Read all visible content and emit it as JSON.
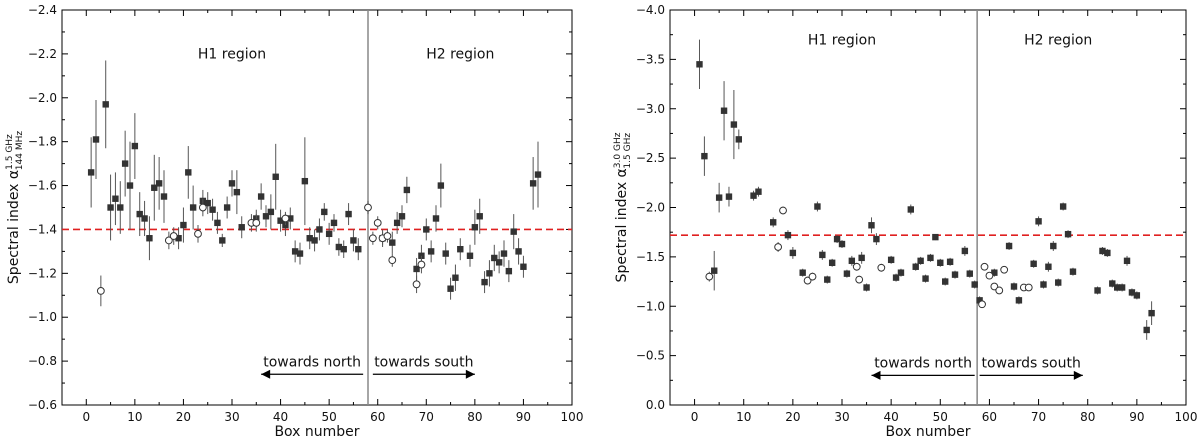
{
  "chart_data": [
    {
      "type": "scatter",
      "xlabel": "Box number",
      "ylabel_main": "Spectral index α",
      "ylabel_sup": "1.5 GHz",
      "ylabel_sub": "144 MHz",
      "xlim": [
        -5,
        100
      ],
      "ylim": [
        -0.6,
        -2.4
      ],
      "xticks": [
        0,
        10,
        20,
        30,
        40,
        50,
        60,
        70,
        80,
        90,
        100
      ],
      "yticks": [
        -0.6,
        -0.8,
        -1.0,
        -1.2,
        -1.4,
        -1.6,
        -1.8,
        -2.0,
        -2.2,
        -2.4
      ],
      "ytick_labels": [
        "−0.6",
        "−0.8",
        "−1.0",
        "−1.2",
        "−1.4",
        "−1.6",
        "−1.8",
        "−2.0",
        "−2.2",
        "−2.4"
      ],
      "reference_line": -1.4,
      "divider_x": 58,
      "region_labels": [
        {
          "text": "H1 region",
          "x": 30,
          "y": -2.18
        },
        {
          "text": "H2 region",
          "x": 77,
          "y": -2.18
        }
      ],
      "arrows": [
        {
          "text": "towards north",
          "x_from": 57,
          "x_to": 36,
          "y": -0.74
        },
        {
          "text": "towards south",
          "x_from": 59,
          "x_to": 80,
          "y": -0.74
        }
      ],
      "series": [
        {
          "name": "filled",
          "points": [
            [
              1,
              -1.66,
              0.16
            ],
            [
              2,
              -1.81,
              0.18
            ],
            [
              4,
              -1.97,
              0.2
            ],
            [
              5,
              -1.5,
              0.15
            ],
            [
              6,
              -1.54,
              0.12
            ],
            [
              7,
              -1.5,
              0.12
            ],
            [
              8,
              -1.7,
              0.15
            ],
            [
              9,
              -1.6,
              0.2
            ],
            [
              10,
              -1.78,
              0.15
            ],
            [
              11,
              -1.47,
              0.1
            ],
            [
              12,
              -1.45,
              0.08
            ],
            [
              13,
              -1.36,
              0.1
            ],
            [
              14,
              -1.59,
              0.15
            ],
            [
              15,
              -1.61,
              0.12
            ],
            [
              16,
              -1.55,
              0.12
            ],
            [
              19,
              -1.36,
              0.05
            ],
            [
              20,
              -1.42,
              0.08
            ],
            [
              21,
              -1.66,
              0.12
            ],
            [
              22,
              -1.5,
              0.1
            ],
            [
              24,
              -1.53,
              0.05
            ],
            [
              25,
              -1.52,
              0.05
            ],
            [
              26,
              -1.49,
              0.05
            ],
            [
              27,
              -1.43,
              0.05
            ],
            [
              28,
              -1.35,
              0.03
            ],
            [
              29,
              -1.5,
              0.05
            ],
            [
              30,
              -1.61,
              0.06
            ],
            [
              31,
              -1.57,
              0.1
            ],
            [
              32,
              -1.41,
              0.05
            ],
            [
              35,
              -1.45,
              0.04
            ],
            [
              36,
              -1.55,
              0.06
            ],
            [
              37,
              -1.46,
              0.05
            ],
            [
              38,
              -1.48,
              0.08
            ],
            [
              39,
              -1.64,
              0.15
            ],
            [
              40,
              -1.44,
              0.05
            ],
            [
              41,
              -1.42,
              0.05
            ],
            [
              42,
              -1.45,
              0.05
            ],
            [
              43,
              -1.3,
              0.05
            ],
            [
              44,
              -1.29,
              0.05
            ],
            [
              45,
              -1.62,
              0.2
            ],
            [
              46,
              -1.36,
              0.05
            ],
            [
              47,
              -1.35,
              0.05
            ],
            [
              48,
              -1.4,
              0.05
            ],
            [
              49,
              -1.48,
              0.04
            ],
            [
              50,
              -1.38,
              0.05
            ],
            [
              51,
              -1.43,
              0.04
            ],
            [
              52,
              -1.32,
              0.04
            ],
            [
              53,
              -1.31,
              0.04
            ],
            [
              54,
              -1.47,
              0.05
            ],
            [
              55,
              -1.35,
              0.05
            ],
            [
              56,
              -1.31,
              0.05
            ],
            [
              61,
              -1.36,
              0.04
            ],
            [
              63,
              -1.34,
              0.05
            ],
            [
              64,
              -1.43,
              0.05
            ],
            [
              65,
              -1.46,
              0.05
            ],
            [
              66,
              -1.58,
              0.06
            ],
            [
              68,
              -1.22,
              0.05
            ],
            [
              69,
              -1.28,
              0.05
            ],
            [
              70,
              -1.4,
              0.05
            ],
            [
              71,
              -1.3,
              0.05
            ],
            [
              72,
              -1.45,
              0.06
            ],
            [
              73,
              -1.6,
              0.1
            ],
            [
              74,
              -1.29,
              0.05
            ],
            [
              75,
              -1.13,
              0.05
            ],
            [
              76,
              -1.18,
              0.06
            ],
            [
              77,
              -1.31,
              0.05
            ],
            [
              79,
              -1.28,
              0.05
            ],
            [
              80,
              -1.41,
              0.08
            ],
            [
              81,
              -1.46,
              0.08
            ],
            [
              82,
              -1.16,
              0.05
            ],
            [
              83,
              -1.2,
              0.06
            ],
            [
              84,
              -1.27,
              0.06
            ],
            [
              85,
              -1.25,
              0.05
            ],
            [
              86,
              -1.29,
              0.06
            ],
            [
              87,
              -1.21,
              0.05
            ],
            [
              88,
              -1.39,
              0.08
            ],
            [
              89,
              -1.3,
              0.06
            ],
            [
              90,
              -1.23,
              0.05
            ],
            [
              92,
              -1.61,
              0.12
            ],
            [
              93,
              -1.65,
              0.15
            ]
          ]
        },
        {
          "name": "open",
          "points": [
            [
              3,
              -1.12,
              0.07
            ],
            [
              17,
              -1.35,
              0.04
            ],
            [
              18,
              -1.37,
              0.04
            ],
            [
              23,
              -1.38,
              0.04
            ],
            [
              24,
              -1.5,
              0.04
            ],
            [
              34,
              -1.43,
              0.04
            ],
            [
              35,
              -1.43,
              0.04
            ],
            [
              41,
              -1.45,
              0.03
            ],
            [
              58,
              -1.5,
              0.03
            ],
            [
              59,
              -1.36,
              0.03
            ],
            [
              60,
              -1.43,
              0.03
            ],
            [
              61,
              -1.36,
              0.03
            ],
            [
              62,
              -1.37,
              0.03
            ],
            [
              63,
              -1.26,
              0.03
            ],
            [
              68,
              -1.15,
              0.04
            ],
            [
              69,
              -1.24,
              0.04
            ]
          ]
        }
      ]
    },
    {
      "type": "scatter",
      "xlabel": "Box number",
      "ylabel_main": "Spectral index α",
      "ylabel_sup": "3.0 GHz",
      "ylabel_sub": "1.5 GHz",
      "xlim": [
        -5,
        100
      ],
      "ylim": [
        0.0,
        -4.0
      ],
      "xticks": [
        0,
        10,
        20,
        30,
        40,
        50,
        60,
        70,
        80,
        90,
        100
      ],
      "yticks": [
        0.0,
        -0.5,
        -1.0,
        -1.5,
        -2.0,
        -2.5,
        -3.0,
        -3.5,
        -4.0
      ],
      "ytick_labels": [
        "0.0",
        "−0.5",
        "−1.0",
        "−1.5",
        "−2.0",
        "−2.5",
        "−3.0",
        "−3.5",
        "−4.0"
      ],
      "reference_line": -1.72,
      "divider_x": 57.5,
      "region_labels": [
        {
          "text": "H1 region",
          "x": 30,
          "y": -3.65
        },
        {
          "text": "H2 region",
          "x": 74,
          "y": -3.65
        }
      ],
      "arrows": [
        {
          "text": "towards north",
          "x_from": 57,
          "x_to": 36,
          "y": -0.3
        },
        {
          "text": "towards south",
          "x_from": 58,
          "x_to": 79,
          "y": -0.3
        }
      ],
      "series": [
        {
          "name": "filled",
          "points": [
            [
              1,
              -3.45,
              0.25
            ],
            [
              2,
              -2.52,
              0.2
            ],
            [
              4,
              -1.36,
              0.2
            ],
            [
              5,
              -2.1,
              0.15
            ],
            [
              6,
              -2.98,
              0.3
            ],
            [
              7,
              -2.11,
              0.1
            ],
            [
              8,
              -2.84,
              0.35
            ],
            [
              9,
              -2.69,
              0.1
            ],
            [
              12,
              -2.12,
              0.05
            ],
            [
              13,
              -2.16,
              0.05
            ],
            [
              16,
              -1.85,
              0.05
            ],
            [
              19,
              -1.72,
              0.05
            ],
            [
              20,
              -1.54,
              0.06
            ],
            [
              22,
              -1.34,
              0.04
            ],
            [
              25,
              -2.01,
              0.05
            ],
            [
              26,
              -1.52,
              0.05
            ],
            [
              27,
              -1.27,
              0.04
            ],
            [
              28,
              -1.44,
              0.04
            ],
            [
              29,
              -1.68,
              0.04
            ],
            [
              30,
              -1.63,
              0.04
            ],
            [
              31,
              -1.33,
              0.04
            ],
            [
              32,
              -1.46,
              0.05
            ],
            [
              34,
              -1.49,
              0.06
            ],
            [
              35,
              -1.19,
              0.04
            ],
            [
              36,
              -1.82,
              0.08
            ],
            [
              37,
              -1.68,
              0.06
            ],
            [
              40,
              -1.47,
              0.04
            ],
            [
              41,
              -1.29,
              0.04
            ],
            [
              42,
              -1.34,
              0.04
            ],
            [
              44,
              -1.98,
              0.05
            ],
            [
              45,
              -1.4,
              0.04
            ],
            [
              46,
              -1.46,
              0.04
            ],
            [
              47,
              -1.28,
              0.04
            ],
            [
              48,
              -1.49,
              0.04
            ],
            [
              49,
              -1.7,
              0.03
            ],
            [
              50,
              -1.44,
              0.04
            ],
            [
              51,
              -1.25,
              0.04
            ],
            [
              52,
              -1.45,
              0.04
            ],
            [
              53,
              -1.32,
              0.04
            ],
            [
              55,
              -1.56,
              0.05
            ],
            [
              56,
              -1.33,
              0.04
            ],
            [
              57,
              -1.22,
              0.04
            ],
            [
              58,
              -1.06,
              0.04
            ],
            [
              61,
              -1.34,
              0.04
            ],
            [
              64,
              -1.61,
              0.04
            ],
            [
              65,
              -1.2,
              0.04
            ],
            [
              66,
              -1.06,
              0.04
            ],
            [
              69,
              -1.43,
              0.04
            ],
            [
              70,
              -1.86,
              0.05
            ],
            [
              71,
              -1.22,
              0.04
            ],
            [
              72,
              -1.4,
              0.05
            ],
            [
              73,
              -1.61,
              0.05
            ],
            [
              74,
              -1.24,
              0.04
            ],
            [
              75,
              -2.01,
              0.04
            ],
            [
              76,
              -1.73,
              0.04
            ],
            [
              77,
              -1.35,
              0.04
            ],
            [
              82,
              -1.16,
              0.04
            ],
            [
              83,
              -1.56,
              0.04
            ],
            [
              84,
              -1.54,
              0.04
            ],
            [
              85,
              -1.23,
              0.04
            ],
            [
              86,
              -1.19,
              0.04
            ],
            [
              87,
              -1.19,
              0.04
            ],
            [
              88,
              -1.46,
              0.05
            ],
            [
              89,
              -1.14,
              0.04
            ],
            [
              90,
              -1.11,
              0.04
            ],
            [
              92,
              -0.76,
              0.1
            ],
            [
              93,
              -0.93,
              0.12
            ]
          ]
        },
        {
          "name": "open",
          "points": [
            [
              3,
              -1.3,
              0.05
            ],
            [
              17,
              -1.6,
              0.05
            ],
            [
              18,
              -1.97,
              0.04
            ],
            [
              23,
              -1.26,
              0.04
            ],
            [
              24,
              -1.3,
              0.04
            ],
            [
              33,
              -1.4,
              0.04
            ],
            [
              33.5,
              -1.27,
              0.04
            ],
            [
              38,
              -1.39,
              0.04
            ],
            [
              58.5,
              -1.02,
              0.03
            ],
            [
              59,
              -1.4,
              0.03
            ],
            [
              60,
              -1.31,
              0.03
            ],
            [
              61,
              -1.2,
              0.03
            ],
            [
              62,
              -1.16,
              0.03
            ],
            [
              63,
              -1.37,
              0.03
            ],
            [
              67,
              -1.19,
              0.03
            ],
            [
              68,
              -1.19,
              0.03
            ]
          ]
        }
      ]
    }
  ]
}
